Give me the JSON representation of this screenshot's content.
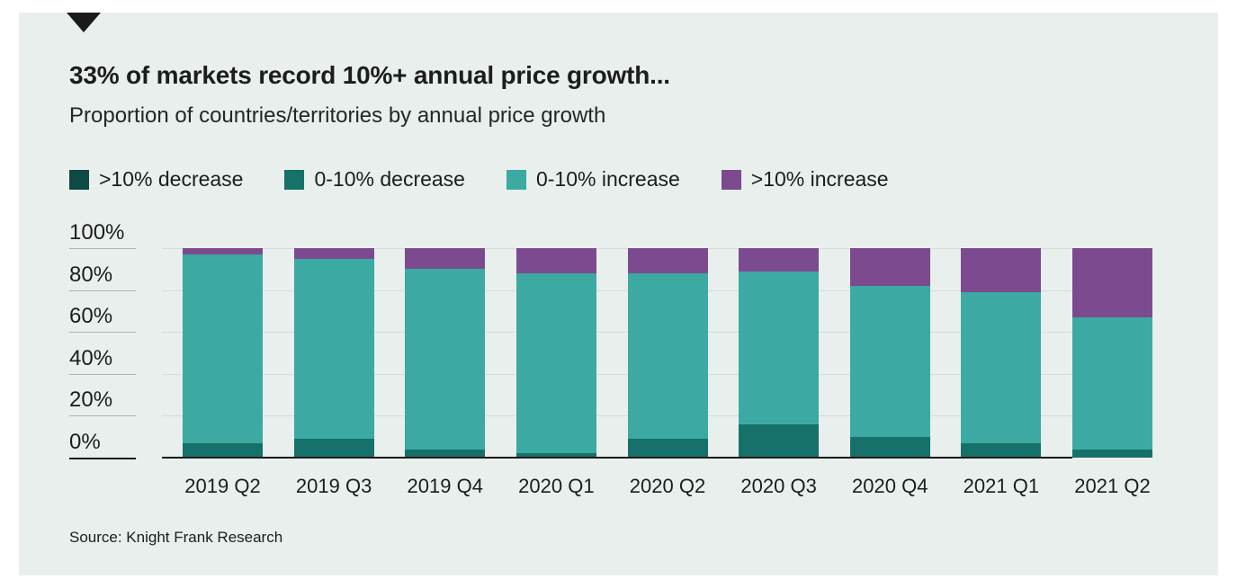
{
  "header": {
    "title": "33% of markets record 10%+ annual price growth...",
    "subtitle": "Proportion of countries/territories by annual price growth"
  },
  "source": "Source: Knight Frank Research",
  "colors": {
    "panel_background": "#e8efec",
    "text": "#1d1d1b",
    "gridline": "#d3deda",
    "axis_line": "#1a1a18",
    "gt10_decrease": "#0e4a45",
    "decrease_0_10": "#157169",
    "increase_0_10": "#3caaa2",
    "gt10_increase": "#7c4b8f"
  },
  "chart_data": {
    "type": "bar",
    "variant": "stacked-percent",
    "title": "33% of markets record 10%+ annual price growth...",
    "subtitle": "Proportion of countries/territories by annual price growth",
    "categories": [
      "2019 Q2",
      "2019 Q3",
      "2019 Q4",
      "2020 Q1",
      "2020 Q2",
      "2020 Q3",
      "2020 Q4",
      "2021 Q1",
      "2021 Q2"
    ],
    "series": [
      {
        "name": ">10% decrease",
        "color": "#0e4a45",
        "values": [
          0,
          0,
          0,
          0,
          0,
          0,
          0,
          0,
          0
        ]
      },
      {
        "name": "0-10% decrease",
        "color": "#157169",
        "values": [
          7,
          9,
          4,
          2,
          9,
          16,
          10,
          7,
          4
        ]
      },
      {
        "name": "0-10% increase",
        "color": "#3caaa2",
        "values": [
          90,
          86,
          86,
          86,
          79,
          73,
          72,
          72,
          63
        ]
      },
      {
        "name": ">10% increase",
        "color": "#7c4b8f",
        "values": [
          3,
          5,
          10,
          12,
          12,
          11,
          18,
          21,
          33
        ]
      }
    ],
    "xlabel": "",
    "ylabel": "",
    "ylim": [
      0,
      100
    ],
    "y_ticks": [
      "100%",
      "80%",
      "60%",
      "40%",
      "20%",
      "0%"
    ],
    "grid": true,
    "legend_position": "top"
  }
}
